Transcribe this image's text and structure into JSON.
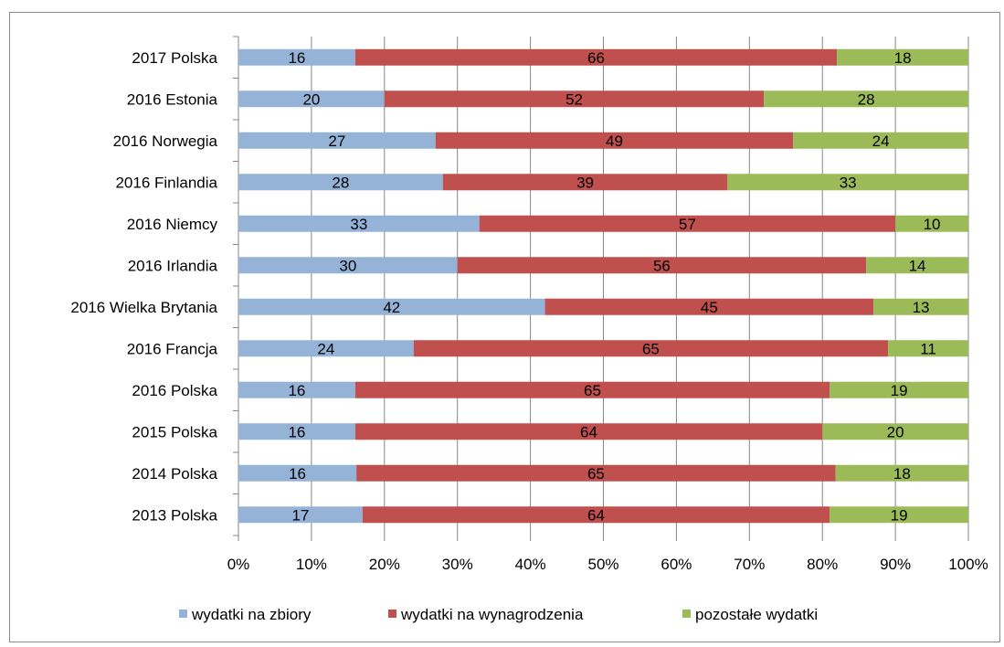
{
  "chart_data": {
    "type": "bar",
    "orientation": "horizontal",
    "stacked": "percent",
    "categories": [
      "2017 Polska",
      "2016 Estonia",
      "2016 Norwegia",
      "2016 Finlandia",
      "2016 Niemcy",
      "2016 Irlandia",
      "2016 Wielka Brytania",
      "2016 Francja",
      "2016 Polska",
      "2015 Polska",
      "2014 Polska",
      "2013 Polska"
    ],
    "series": [
      {
        "name": "wydatki na zbiory",
        "color": "#95b3d7",
        "values": [
          16,
          20,
          27,
          28,
          33,
          30,
          42,
          24,
          16,
          16,
          16,
          17
        ]
      },
      {
        "name": "wydatki na wynagrodzenia",
        "color": "#c0504d",
        "values": [
          66,
          52,
          49,
          39,
          57,
          56,
          45,
          65,
          65,
          64,
          65,
          64
        ]
      },
      {
        "name": "pozostałe wydatki",
        "color": "#9bbb59",
        "values": [
          18,
          28,
          24,
          33,
          10,
          14,
          13,
          11,
          19,
          20,
          18,
          19
        ]
      }
    ],
    "x_ticks": [
      "0%",
      "10%",
      "20%",
      "30%",
      "40%",
      "50%",
      "60%",
      "70%",
      "80%",
      "90%",
      "100%"
    ],
    "xlim": [
      0,
      100
    ],
    "title": "",
    "xlabel": "",
    "ylabel": "",
    "grid": true,
    "legend_position": "bottom"
  }
}
